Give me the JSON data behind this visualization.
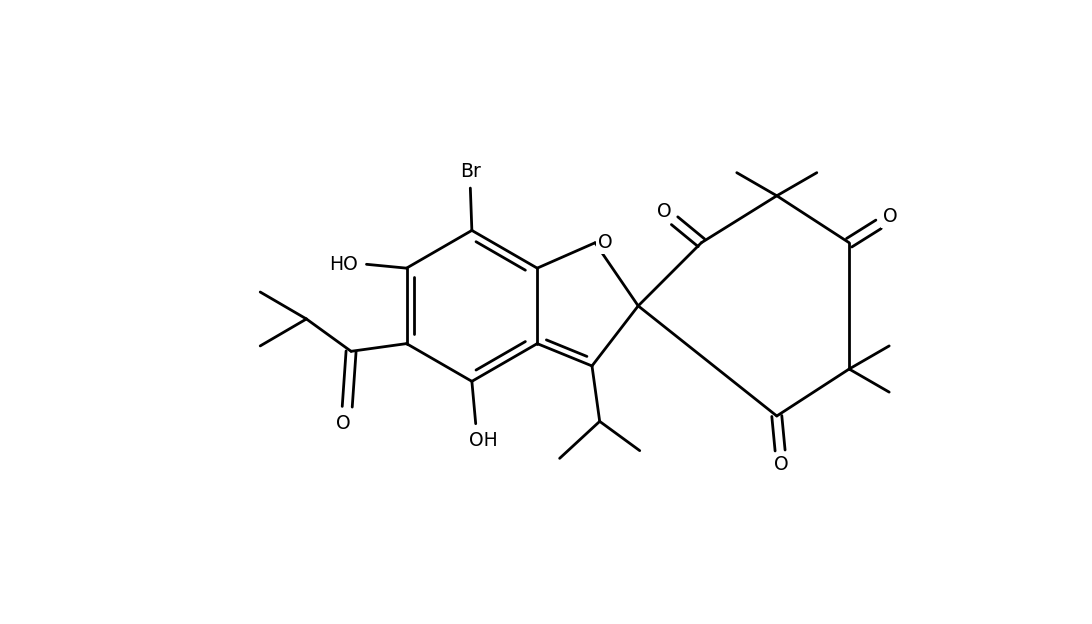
{
  "figsize": [
    10.92,
    6.24
  ],
  "dpi": 100,
  "bg": "#ffffff",
  "lc": "#000000",
  "lw": 2.0,
  "fs": 13.5,
  "xlim": [
    0,
    10.92
  ],
  "ylim": [
    0,
    6.24
  ]
}
